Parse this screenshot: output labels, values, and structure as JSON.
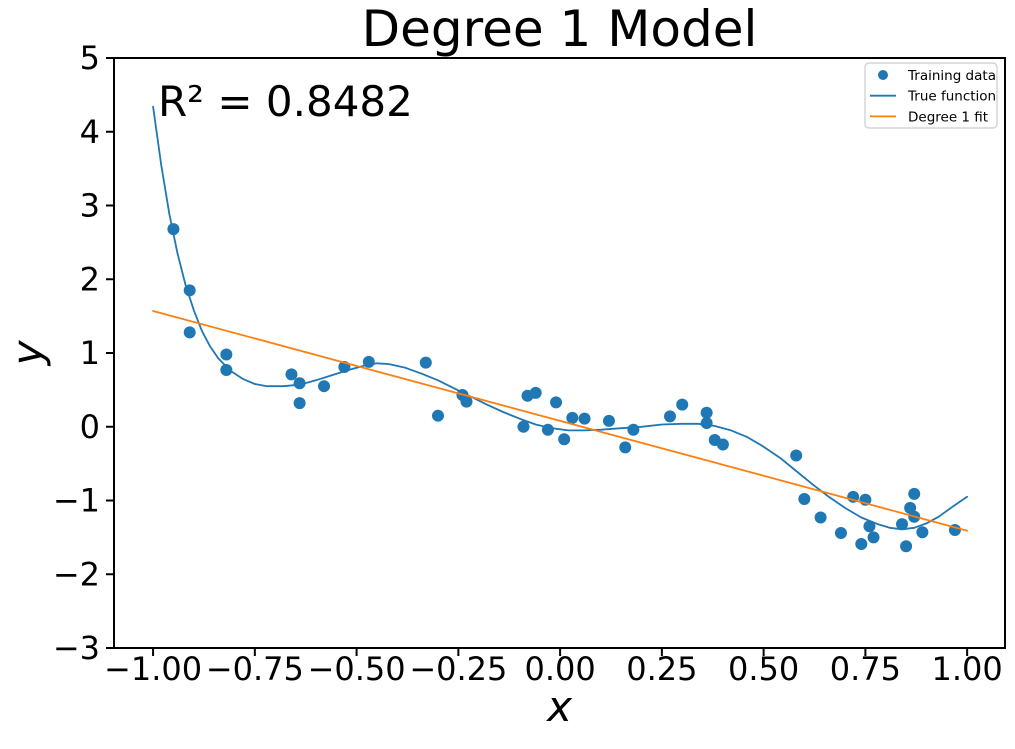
{
  "title": "Degree 1 Model",
  "annotation": "R² = 0.8482",
  "colors": {
    "blue": "#1f77b4",
    "orange": "#ff7f0e",
    "text": "#000000",
    "spine": "#000000",
    "legend_border": "#cccccc",
    "background": "#ffffff"
  },
  "chart_data": {
    "type": "scatter",
    "title": "Degree 1 Model",
    "annotation": "R² = 0.8482",
    "r_squared": 0.8482,
    "xlabel": "x",
    "ylabel": "y",
    "xlim": [
      -1.096,
      1.093
    ],
    "ylim": [
      -3,
      5
    ],
    "grid": false,
    "legend_position": "upper right",
    "xticks": [
      {
        "value": -1.0,
        "label": "−1.00"
      },
      {
        "value": -0.75,
        "label": "−0.75"
      },
      {
        "value": -0.5,
        "label": "−0.50"
      },
      {
        "value": -0.25,
        "label": "−0.25"
      },
      {
        "value": 0.0,
        "label": "0.00"
      },
      {
        "value": 0.25,
        "label": "0.25"
      },
      {
        "value": 0.5,
        "label": "0.50"
      },
      {
        "value": 0.75,
        "label": "0.75"
      },
      {
        "value": 1.0,
        "label": "1.00"
      }
    ],
    "yticks": [
      {
        "value": -3,
        "label": "−3"
      },
      {
        "value": -2,
        "label": "−2"
      },
      {
        "value": -1,
        "label": "−1"
      },
      {
        "value": 0,
        "label": "0"
      },
      {
        "value": 1,
        "label": "1"
      },
      {
        "value": 2,
        "label": "2"
      },
      {
        "value": 3,
        "label": "3"
      },
      {
        "value": 4,
        "label": "4"
      },
      {
        "value": 5,
        "label": "5"
      }
    ],
    "legend": [
      {
        "label": "Training data",
        "marker": "dot",
        "color": "#1f77b4"
      },
      {
        "label": "True function",
        "marker": "line",
        "color": "#1f77b4"
      },
      {
        "label": "Degree 1 fit",
        "marker": "line",
        "color": "#ff7f0e"
      }
    ],
    "series": [
      {
        "name": "Training data",
        "type": "scatter",
        "color": "#1f77b4",
        "marker_radius": 6,
        "points": [
          [
            -0.95,
            2.68
          ],
          [
            -0.91,
            1.85
          ],
          [
            -0.91,
            1.28
          ],
          [
            -0.82,
            0.98
          ],
          [
            -0.82,
            0.77
          ],
          [
            -0.66,
            0.71
          ],
          [
            -0.64,
            0.59
          ],
          [
            -0.64,
            0.32
          ],
          [
            -0.58,
            0.55
          ],
          [
            -0.53,
            0.81
          ],
          [
            -0.47,
            0.88
          ],
          [
            -0.33,
            0.87
          ],
          [
            -0.3,
            0.15
          ],
          [
            -0.24,
            0.43
          ],
          [
            -0.23,
            0.34
          ],
          [
            -0.09,
            0.0
          ],
          [
            -0.08,
            0.42
          ],
          [
            -0.06,
            0.46
          ],
          [
            -0.03,
            -0.04
          ],
          [
            -0.01,
            0.33
          ],
          [
            0.01,
            -0.17
          ],
          [
            0.03,
            0.12
          ],
          [
            0.06,
            0.11
          ],
          [
            0.12,
            0.08
          ],
          [
            0.16,
            -0.28
          ],
          [
            0.18,
            -0.04
          ],
          [
            0.27,
            0.14
          ],
          [
            0.3,
            0.3
          ],
          [
            0.36,
            0.19
          ],
          [
            0.36,
            0.05
          ],
          [
            0.38,
            -0.18
          ],
          [
            0.4,
            -0.24
          ],
          [
            0.58,
            -0.39
          ],
          [
            0.6,
            -0.98
          ],
          [
            0.64,
            -1.23
          ],
          [
            0.69,
            -1.44
          ],
          [
            0.72,
            -0.95
          ],
          [
            0.74,
            -1.59
          ],
          [
            0.75,
            -0.99
          ],
          [
            0.76,
            -1.35
          ],
          [
            0.77,
            -1.5
          ],
          [
            0.84,
            -1.32
          ],
          [
            0.85,
            -1.62
          ],
          [
            0.86,
            -1.1
          ],
          [
            0.87,
            -0.91
          ],
          [
            0.87,
            -1.22
          ],
          [
            0.89,
            -1.43
          ],
          [
            0.97,
            -1.4
          ]
        ]
      },
      {
        "name": "True function",
        "type": "line",
        "color": "#1f77b4",
        "width": 1.8,
        "points": [
          [
            -1.0,
            4.34
          ],
          [
            -0.98,
            3.55
          ],
          [
            -0.96,
            2.88
          ],
          [
            -0.94,
            2.35
          ],
          [
            -0.92,
            1.92
          ],
          [
            -0.9,
            1.58
          ],
          [
            -0.88,
            1.3
          ],
          [
            -0.86,
            1.09
          ],
          [
            -0.84,
            0.93
          ],
          [
            -0.81,
            0.76
          ],
          [
            -0.78,
            0.65
          ],
          [
            -0.75,
            0.58
          ],
          [
            -0.72,
            0.55
          ],
          [
            -0.68,
            0.55
          ],
          [
            -0.64,
            0.57
          ],
          [
            -0.6,
            0.63
          ],
          [
            -0.56,
            0.7
          ],
          [
            -0.52,
            0.77
          ],
          [
            -0.48,
            0.83
          ],
          [
            -0.45,
            0.86
          ],
          [
            -0.42,
            0.85
          ],
          [
            -0.38,
            0.8
          ],
          [
            -0.34,
            0.72
          ],
          [
            -0.3,
            0.63
          ],
          [
            -0.26,
            0.52
          ],
          [
            -0.22,
            0.41
          ],
          [
            -0.18,
            0.3
          ],
          [
            -0.14,
            0.2
          ],
          [
            -0.1,
            0.11
          ],
          [
            -0.06,
            0.03
          ],
          [
            -0.02,
            -0.02
          ],
          [
            0.02,
            -0.05
          ],
          [
            0.06,
            -0.05
          ],
          [
            0.1,
            -0.04
          ],
          [
            0.15,
            -0.02
          ],
          [
            0.2,
            0.0
          ],
          [
            0.25,
            0.03
          ],
          [
            0.3,
            0.04
          ],
          [
            0.34,
            0.04
          ],
          [
            0.38,
            0.01
          ],
          [
            0.42,
            -0.05
          ],
          [
            0.46,
            -0.14
          ],
          [
            0.5,
            -0.27
          ],
          [
            0.54,
            -0.42
          ],
          [
            0.58,
            -0.6
          ],
          [
            0.62,
            -0.78
          ],
          [
            0.66,
            -0.95
          ],
          [
            0.7,
            -1.1
          ],
          [
            0.74,
            -1.23
          ],
          [
            0.78,
            -1.32
          ],
          [
            0.81,
            -1.37
          ],
          [
            0.84,
            -1.39
          ],
          [
            0.87,
            -1.37
          ],
          [
            0.9,
            -1.31
          ],
          [
            0.93,
            -1.22
          ],
          [
            0.96,
            -1.1
          ],
          [
            1.0,
            -0.95
          ]
        ]
      },
      {
        "name": "Degree 1 fit",
        "type": "line",
        "color": "#ff7f0e",
        "width": 1.8,
        "points": [
          [
            -1.0,
            1.57
          ],
          [
            1.0,
            -1.41
          ]
        ]
      }
    ]
  }
}
